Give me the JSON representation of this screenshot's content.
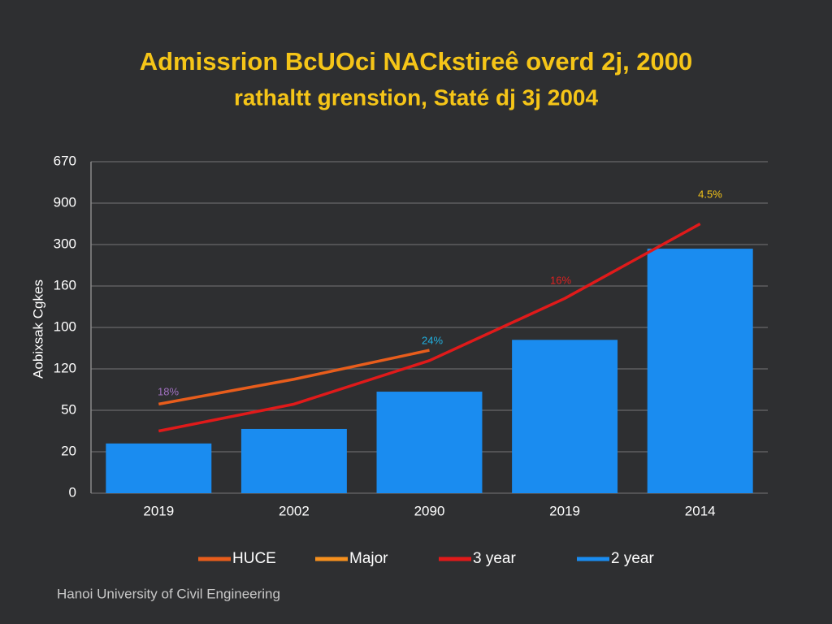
{
  "chart_data": {
    "type": "bar",
    "title": "Admissrion BcUOci NACkstireê overd 2j, 2000",
    "subtitle": "rathaltt grenstion, Staté dj 3j 2004",
    "y_label": "Aobixsak Cgkes",
    "footer": "Hanoi University of Civil Engineering",
    "categories": [
      "2019",
      "2002",
      "2090",
      "2019",
      "2014"
    ],
    "ylim": [
      0,
      8
    ],
    "yticks": [
      {
        "value": 0,
        "label": "0"
      },
      {
        "value": 1,
        "label": "20"
      },
      {
        "value": 2,
        "label": "50"
      },
      {
        "value": 3,
        "label": "120"
      },
      {
        "value": 4,
        "label": "100"
      },
      {
        "value": 5,
        "label": "160"
      },
      {
        "value": 6,
        "label": "300"
      },
      {
        "value": 7,
        "label": "900"
      },
      {
        "value": 8,
        "label": "670"
      }
    ],
    "grid": true,
    "series": [
      {
        "name": "HUCE",
        "type": "line",
        "color": "#e85d1c",
        "values": [
          2.15,
          2.75,
          3.45,
          null,
          null
        ]
      },
      {
        "name": "Major",
        "type": "line",
        "color": "#f5901e",
        "values": [
          null,
          null,
          null,
          null,
          null
        ]
      },
      {
        "name": "3 year",
        "type": "line",
        "color": "#e01a1a",
        "values": [
          1.5,
          2.15,
          3.2,
          4.7,
          6.5
        ]
      },
      {
        "name": "2 year",
        "type": "bar",
        "color": "#1a8cf0",
        "values": [
          1.2,
          1.55,
          2.45,
          3.7,
          5.9
        ]
      }
    ],
    "annotations": [
      {
        "text": "18%",
        "color": "#a070c0"
      },
      {
        "text": "24%",
        "color": "#20b0e0"
      },
      {
        "text": "16%",
        "color": "#e02020"
      },
      {
        "text": "4.5%",
        "color": "#f5c518"
      }
    ]
  }
}
